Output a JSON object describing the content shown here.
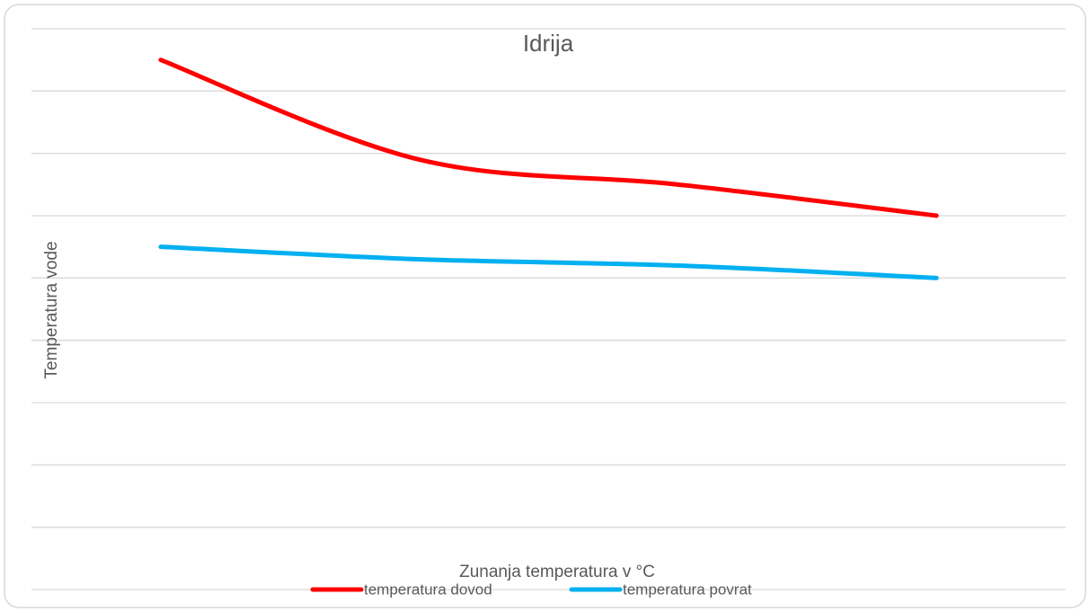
{
  "chart_data": {
    "type": "line",
    "title": "Idrija",
    "x_label": "Zunanja temperatura v °C",
    "y_label": "Temperatura vode",
    "categories": [
      null,
      null,
      null,
      null
    ],
    "series": [
      {
        "name": "temperatura dovod",
        "color": "#ff0000",
        "values": [
          8.5,
          6.9,
          6.5,
          6.0
        ]
      },
      {
        "name": "temperatura povrat",
        "color": "#00b0f0",
        "values": [
          5.5,
          5.3,
          5.2,
          5.0
        ]
      }
    ],
    "ylim": [
      0,
      9
    ],
    "yticks": [
      0,
      1,
      2,
      3,
      4,
      5,
      6,
      7,
      8,
      9
    ],
    "grid": true,
    "legend": "bottom"
  }
}
